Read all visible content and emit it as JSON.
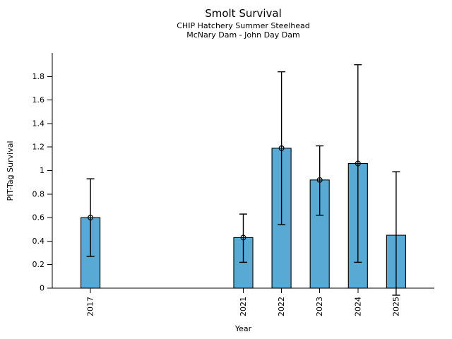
{
  "chart_data": {
    "type": "bar",
    "title": "Smolt Survival",
    "subtitle_line1": "CHIP Hatchery Summer Steelhead",
    "subtitle_line2": "McNary Dam - John Day Dam",
    "xlabel": "Year",
    "ylabel": "PIT-Tag Survival",
    "categories": [
      2017,
      2021,
      2022,
      2023,
      2024,
      2025
    ],
    "values": [
      0.6,
      0.43,
      1.19,
      0.92,
      1.06,
      0.45
    ],
    "error_low": [
      0.27,
      0.22,
      0.54,
      0.62,
      0.22,
      -0.06
    ],
    "error_high": [
      0.93,
      0.63,
      1.84,
      1.21,
      1.9,
      0.99
    ],
    "point_marker_shown": [
      true,
      true,
      true,
      true,
      true,
      false
    ],
    "xlim": [
      2016,
      2026
    ],
    "ylim": [
      0,
      2.0
    ],
    "ytick_values": [
      0,
      0.2,
      0.4,
      0.6,
      0.8,
      1.0,
      1.2,
      1.4,
      1.6,
      1.8
    ],
    "ytick_labels": [
      "0",
      "0.2",
      "0.4",
      "0.6",
      "0.8",
      "1",
      "1.2",
      "1.4",
      "1.6",
      "1.8"
    ],
    "bar_width_years": 0.5,
    "bar_color": "#58A9D4",
    "bar_edge_color": "#000000",
    "error_color": "#000000",
    "grid": false,
    "legend": "none",
    "xtick_label_rotation_deg": 90
  }
}
